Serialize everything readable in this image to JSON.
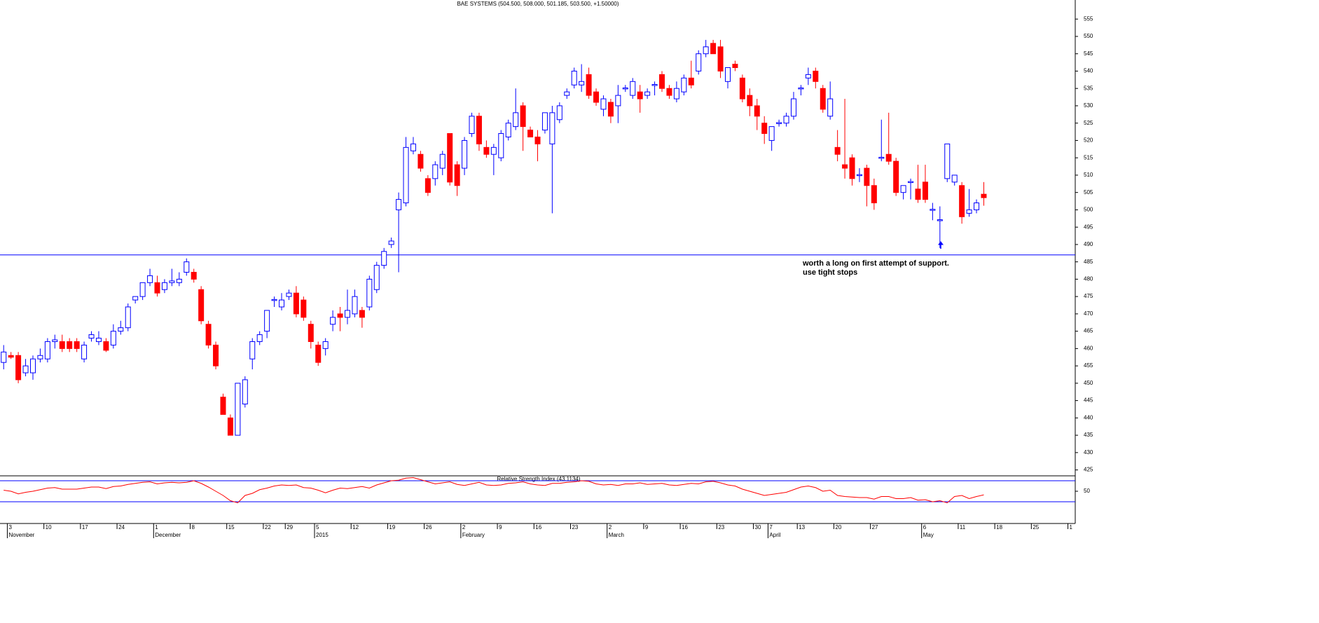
{
  "chart_data": {
    "type": "candlestick",
    "title": "BAE SYSTEMS (504.500, 508.000, 501.185, 503.500, +1.50000)",
    "categories": [
      null,
      "3",
      null,
      null,
      null,
      null,
      "10",
      null,
      null,
      null,
      null,
      "17",
      null,
      null,
      null,
      null,
      "24",
      null,
      null,
      null,
      null,
      "1",
      null,
      null,
      null,
      null,
      "8",
      null,
      null,
      null,
      null,
      "15",
      null,
      null,
      null,
      null,
      "22",
      null,
      null,
      "29",
      null,
      null,
      null,
      "5",
      null,
      null,
      null,
      null,
      "12",
      null,
      null,
      null,
      null,
      "19",
      null,
      null,
      null,
      null,
      "26",
      null,
      null,
      null,
      null,
      "2",
      null,
      null,
      null,
      null,
      "9",
      null,
      null,
      null,
      null,
      "16",
      null,
      null,
      null,
      null,
      "23",
      null,
      null,
      null,
      null,
      "2",
      null,
      null,
      null,
      null,
      "9",
      null,
      null,
      null,
      null,
      "16",
      null,
      null,
      null,
      null,
      "23",
      null,
      null,
      null,
      null,
      "30",
      null,
      "7",
      null,
      null,
      null,
      "13",
      null,
      null,
      null,
      null,
      "20",
      null,
      null,
      null,
      null,
      "27",
      null,
      null,
      null,
      null,
      null,
      null,
      "6",
      null,
      null,
      null,
      null,
      "11",
      null,
      null,
      null,
      null,
      "18",
      null,
      null,
      null,
      null,
      "25",
      null,
      null,
      null,
      null,
      "1"
    ],
    "month_labels": [
      {
        "category": 1,
        "label": "November"
      },
      {
        "category": 21,
        "label": "December"
      },
      {
        "category": 43,
        "label": "2015"
      },
      {
        "category": 63,
        "label": "February"
      },
      {
        "category": 83,
        "label": "March"
      },
      {
        "category": 105,
        "label": "April"
      },
      {
        "category": 126,
        "label": "May"
      }
    ],
    "open": [
      456,
      458,
      458,
      453,
      453,
      457,
      457,
      462,
      462,
      462,
      462,
      457,
      463,
      462,
      462,
      461,
      465,
      466,
      474,
      475,
      479,
      479,
      477,
      479,
      479,
      482,
      482,
      477,
      467,
      461,
      446,
      440,
      435,
      444,
      457,
      462,
      465,
      474,
      472,
      475,
      476,
      474,
      467,
      461,
      460,
      467,
      470,
      469,
      470,
      471,
      472,
      477,
      484,
      490,
      500,
      502,
      517,
      516,
      509,
      509,
      512,
      522,
      513,
      512,
      522,
      527,
      518,
      516,
      515,
      521,
      524,
      530,
      523,
      521,
      523,
      519,
      526,
      533,
      536,
      536,
      539,
      534,
      529,
      531,
      530,
      535,
      533,
      534,
      533,
      536,
      539,
      535,
      532,
      534,
      538,
      540,
      545,
      548,
      547,
      537,
      542,
      538,
      533,
      530,
      525,
      520,
      525,
      525,
      527,
      535,
      538,
      540,
      535,
      527,
      518,
      513,
      515,
      510,
      512,
      507,
      515,
      516,
      514,
      505,
      508,
      506,
      508,
      500,
      497,
      509,
      508,
      507,
      499,
      500,
      504.5,
      null,
      null,
      null,
      null,
      null,
      null,
      null,
      null,
      null,
      null,
      null,
      null
    ],
    "high": [
      461,
      459,
      459,
      457,
      458,
      460,
      463,
      464,
      464,
      463,
      463,
      462,
      465,
      465,
      463,
      467,
      468,
      473,
      475,
      479,
      483,
      481,
      480,
      483,
      482,
      486,
      483,
      478,
      468,
      462,
      447,
      441,
      450,
      452,
      463,
      465,
      471,
      475,
      476,
      477,
      478,
      475,
      468,
      462,
      463,
      471,
      472,
      477,
      477,
      472,
      481,
      485,
      489,
      492,
      505,
      521,
      521,
      517,
      510,
      514,
      517,
      522,
      514,
      521,
      528,
      528,
      520,
      519,
      523,
      526,
      535,
      531,
      524,
      523,
      528,
      530,
      531,
      535,
      541,
      542,
      541,
      535,
      533,
      532,
      536,
      536,
      538,
      536,
      535,
      537,
      540,
      536,
      537,
      539,
      543,
      546,
      549,
      549,
      549,
      541,
      543,
      539,
      535,
      532,
      527,
      524,
      526,
      528,
      534,
      536,
      541,
      541,
      536,
      537,
      523,
      532,
      516,
      512,
      513,
      509,
      526,
      528,
      515,
      507,
      509,
      513,
      513,
      502,
      501,
      519,
      510,
      508,
      506,
      503,
      508,
      null,
      null,
      null,
      null,
      null,
      null,
      null,
      null,
      null,
      null,
      null,
      null
    ],
    "low": [
      454,
      457,
      450,
      452,
      451,
      456,
      456,
      460,
      459,
      459,
      459,
      456,
      462,
      461,
      459,
      460,
      464,
      465,
      473,
      474,
      478,
      475,
      476,
      478,
      478,
      481,
      479,
      467,
      460,
      454,
      441,
      435,
      435,
      443,
      454,
      461,
      463,
      472,
      471,
      474,
      469,
      468,
      460,
      455,
      458,
      465,
      465,
      467,
      469,
      466,
      471,
      476,
      483,
      489,
      482,
      501,
      516,
      511,
      504,
      507,
      510,
      507,
      504,
      510,
      521,
      517,
      515,
      510,
      514,
      520,
      523,
      517,
      521,
      514,
      522,
      499,
      525,
      532,
      535,
      534,
      532,
      530,
      527,
      525,
      525,
      534,
      532,
      528,
      532,
      533,
      534,
      532,
      531,
      533,
      535,
      539,
      544,
      545,
      538,
      535,
      540,
      531,
      527,
      523,
      519,
      517,
      524,
      524,
      526,
      533,
      536,
      535,
      528,
      526,
      514,
      509,
      507,
      508,
      501,
      500,
      514,
      513,
      504,
      503,
      503,
      502,
      502,
      497,
      489,
      508,
      507,
      496,
      498,
      499,
      501.185,
      null,
      null,
      null,
      null,
      null,
      null,
      null,
      null,
      null,
      null,
      null,
      null
    ],
    "close": [
      459,
      457.5,
      451,
      455,
      457,
      458,
      462,
      462.5,
      460,
      460,
      460,
      461,
      464,
      463,
      459.5,
      465,
      466,
      472,
      475,
      479,
      481,
      476,
      479,
      479.5,
      480,
      485,
      480,
      468,
      461,
      455,
      441,
      435,
      450,
      451,
      462,
      464,
      471,
      474,
      474,
      476,
      470,
      469,
      462,
      456,
      462,
      469,
      469,
      471,
      475,
      469,
      480,
      484,
      488,
      491,
      503,
      518,
      519,
      512,
      505,
      513,
      516,
      508,
      507,
      520,
      527,
      519,
      516,
      518,
      522,
      525,
      528,
      524,
      521,
      519,
      528,
      528,
      530,
      534,
      540,
      537,
      533,
      531,
      532,
      527,
      533,
      535,
      537,
      532,
      534,
      536,
      535,
      533,
      535,
      538,
      536,
      545,
      547,
      545,
      540,
      541,
      541,
      532,
      530,
      527,
      522,
      524,
      525,
      527,
      532,
      535,
      539,
      537,
      529,
      532,
      516,
      512,
      509,
      510,
      507,
      502,
      515,
      514,
      505,
      507,
      508,
      503,
      503,
      500,
      497,
      519,
      510,
      498,
      500,
      502,
      503.5,
      null,
      null,
      null,
      null,
      null,
      null,
      null,
      null,
      null,
      null,
      null,
      null
    ],
    "up_color": "#0000ff",
    "down_color": "#ff0000",
    "ylim": [
      423.5,
      560.5
    ],
    "yticks": [
      425,
      430,
      435,
      440,
      445,
      450,
      455,
      460,
      465,
      470,
      475,
      480,
      485,
      490,
      495,
      500,
      505,
      510,
      515,
      520,
      525,
      530,
      535,
      540,
      545,
      550,
      555
    ],
    "support": 487,
    "support_color": "#0000ff",
    "annotation": [
      "worth a long on first attempt of support.",
      "use tight stops"
    ],
    "annotation_color": "#0000ff",
    "rsi": {
      "title": "Relative Strength Index (43.1134)",
      "color": "#ff0000",
      "values": [
        52,
        50,
        45,
        48,
        50,
        53,
        56,
        57,
        54,
        54,
        54,
        56,
        58,
        58,
        55,
        59,
        60,
        63,
        65,
        67,
        68,
        64,
        66,
        67,
        66,
        67,
        70,
        65,
        58,
        50,
        42,
        32,
        28,
        42,
        46,
        53,
        56,
        60,
        62,
        61,
        62,
        57,
        56,
        52,
        47,
        52,
        56,
        55,
        57,
        59,
        56,
        62,
        66,
        70,
        71,
        75,
        76,
        72,
        68,
        64,
        66,
        68,
        63,
        61,
        64,
        67,
        62,
        61,
        62,
        65,
        66,
        68,
        64,
        62,
        61,
        65,
        65,
        67,
        68,
        70,
        69,
        64,
        62,
        63,
        61,
        64,
        64,
        66,
        63,
        64,
        65,
        62,
        61,
        63,
        65,
        64,
        68,
        69,
        66,
        62,
        60,
        54,
        50,
        46,
        42,
        44,
        46,
        48,
        53,
        58,
        60,
        57,
        50,
        52,
        42,
        40,
        39,
        38,
        38,
        35,
        40,
        40,
        36,
        36,
        38,
        33,
        34,
        30,
        32,
        28,
        40,
        42,
        36,
        40,
        43.1134,
        null,
        null,
        null,
        null,
        null,
        null,
        null,
        null,
        null,
        null,
        null,
        null
      ],
      "ylim": [
        0,
        100
      ],
      "yticks": [
        50
      ],
      "levels": [
        30,
        70
      ],
      "level_color": "#0000ff"
    }
  }
}
